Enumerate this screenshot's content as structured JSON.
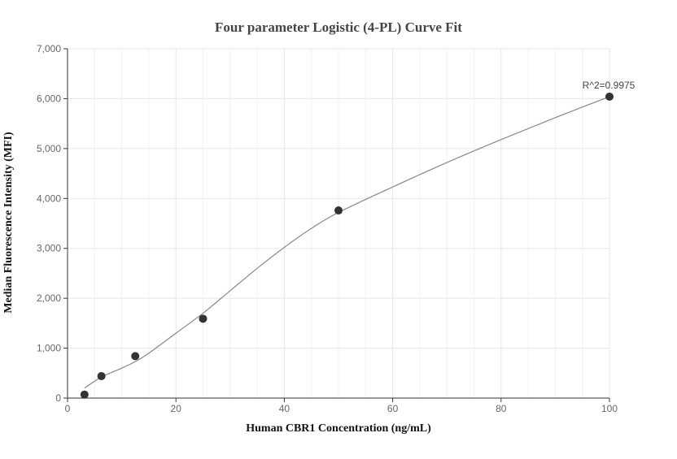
{
  "chart_data": {
    "type": "scatter",
    "title": "Four parameter Logistic (4-PL) Curve Fit",
    "xlabel": "Human CBR1 Concentration (ng/mL)",
    "ylabel": "Median Fluorescence Intensity (MFI)",
    "xlim": [
      0,
      100
    ],
    "ylim": [
      0,
      7000
    ],
    "x_ticks": [
      "0",
      "20",
      "40",
      "60",
      "80",
      "100"
    ],
    "y_ticks": [
      "0",
      "1,000",
      "2,000",
      "3,000",
      "4,000",
      "5,000",
      "6,000",
      "7,000"
    ],
    "grid": true,
    "points": [
      {
        "x": 3.125,
        "y": 70
      },
      {
        "x": 6.25,
        "y": 440
      },
      {
        "x": 12.5,
        "y": 840
      },
      {
        "x": 25,
        "y": 1590
      },
      {
        "x": 50,
        "y": 3760
      },
      {
        "x": 100,
        "y": 6040
      }
    ],
    "fit_curve": {
      "x": [
        3.125,
        6.25,
        10,
        12.5,
        15,
        20,
        25,
        30,
        35,
        40,
        45,
        50,
        60,
        70,
        80,
        90,
        100
      ],
      "y": [
        200,
        420,
        600,
        730,
        900,
        1300,
        1700,
        2150,
        2600,
        3020,
        3400,
        3720,
        4230,
        4720,
        5180,
        5620,
        6040
      ]
    },
    "annotation": "R^2=0.9975",
    "colors": {
      "point": "#333333",
      "curve": "#888888",
      "grid": "#e6e6e6",
      "axis": "#333333"
    }
  }
}
